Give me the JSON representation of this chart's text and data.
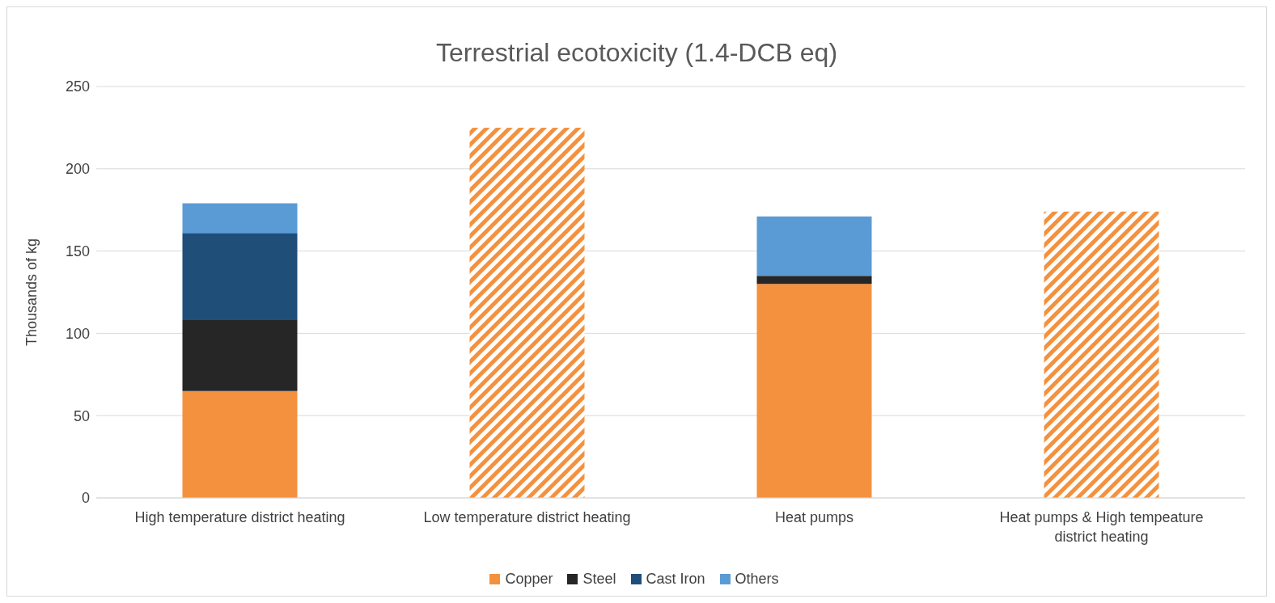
{
  "chart_data": {
    "type": "bar",
    "title": "Terrestrial ecotoxicity (1.4-DCB eq)",
    "ylabel": "Thousands of kg",
    "categories": [
      "High temperature district heating",
      "Low temperature district heating",
      "Heat pumps",
      "Heat pumps & High tempeature district heating"
    ],
    "stacked": true,
    "series": [
      {
        "name": "Copper",
        "color": "#f4913e",
        "values": [
          65,
          null,
          130,
          null
        ]
      },
      {
        "name": "Steel",
        "color": "#262626",
        "values": [
          43,
          null,
          5,
          null
        ]
      },
      {
        "name": "Cast Iron",
        "color": "#1f4e79",
        "values": [
          53,
          null,
          null,
          null
        ]
      },
      {
        "name": "Others",
        "color": "#5b9bd5",
        "values": [
          18,
          null,
          36,
          null
        ]
      },
      {
        "color": "#f4913e",
        "values": [
          null,
          225,
          null,
          174
        ]
      }
    ],
    "ylim": [
      0,
      250
    ],
    "yticks": [
      0,
      50,
      100,
      150,
      200,
      250
    ],
    "grid": "y",
    "legend": "bottom"
  }
}
